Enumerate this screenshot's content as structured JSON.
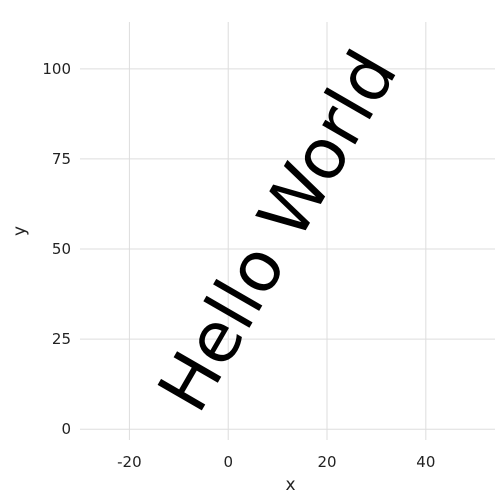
{
  "chart_data": {
    "type": "scatter",
    "title": "",
    "xlabel": "x",
    "ylabel": "y",
    "xlim": [
      -30,
      54
    ],
    "ylim": [
      -3,
      113
    ],
    "x_ticks": [
      -20,
      0,
      20,
      40
    ],
    "y_ticks": [
      0,
      25,
      50,
      75,
      100
    ],
    "x_tick_labels": [
      "-20",
      "0",
      "20",
      "40"
    ],
    "y_tick_labels": [
      "0",
      "25",
      "50",
      "75",
      "100"
    ],
    "grid": true,
    "legend": "none",
    "series": [],
    "annotations": [
      {
        "text": "Hello World",
        "x": 10,
        "y": 55,
        "rotation_deg": -60,
        "color": "#000000"
      }
    ]
  }
}
